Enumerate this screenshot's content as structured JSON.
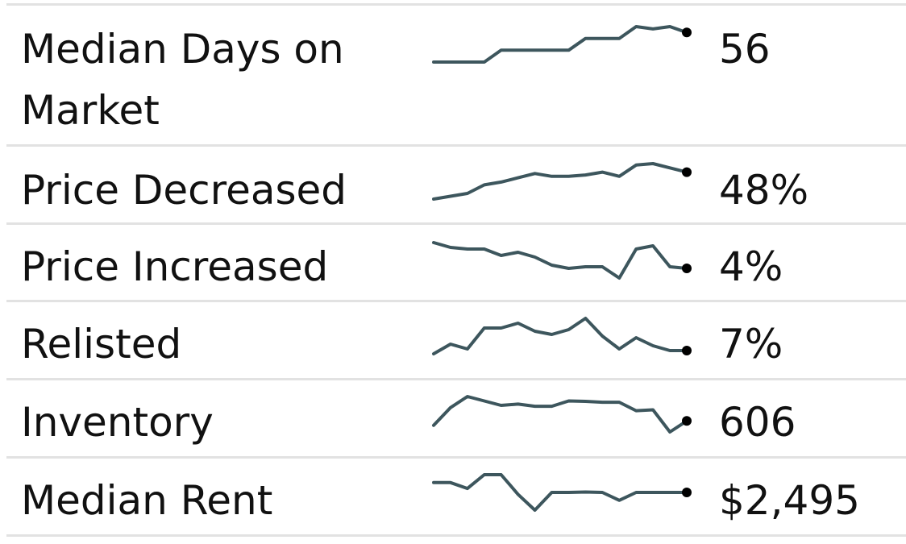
{
  "colors": {
    "line": "#3d565d",
    "end_dot": "#000000",
    "divider": "#e2e2e2"
  },
  "rows": [
    {
      "label_line1": "Median Days on",
      "label_line2": "Market",
      "value": "56"
    },
    {
      "label_line1": "Price Decreased",
      "label_line2": "",
      "value": "48%"
    },
    {
      "label_line1": "Price Increased",
      "label_line2": "",
      "value": "4%"
    },
    {
      "label_line1": "Relisted",
      "label_line2": "",
      "value": "7%"
    },
    {
      "label_line1": "Inventory",
      "label_line2": "",
      "value": "606"
    },
    {
      "label_line1": "Median Rent",
      "label_line2": "",
      "value": "$2,495"
    }
  ],
  "chart_data": {
    "type": "line",
    "series": [
      {
        "values": [
          0,
          0,
          0,
          0,
          1,
          1,
          1,
          1,
          1,
          2,
          2,
          2,
          3,
          2.8,
          3,
          2.5
        ]
      },
      {
        "values": [
          0,
          1,
          2,
          5,
          6,
          7.5,
          9,
          8,
          8,
          8.5,
          9.5,
          8,
          12,
          12.5,
          11,
          9.5
        ]
      },
      {
        "values": [
          11,
          9.5,
          9,
          9,
          7,
          8,
          6.5,
          4,
          3,
          3.5,
          3.5,
          0,
          9,
          10,
          3.5,
          3
        ]
      },
      {
        "values": [
          0,
          3,
          1.5,
          8,
          8,
          9.5,
          7,
          6,
          7.5,
          11,
          5.5,
          1.5,
          5,
          2.5,
          1,
          1
        ]
      },
      {
        "values": [
          2,
          6,
          8.5,
          7.5,
          6.5,
          6.8,
          6.3,
          6.3,
          7.5,
          7.4,
          7.2,
          7.2,
          5.3,
          5.5,
          0.5,
          3
        ]
      },
      {
        "values": [
          7,
          7,
          5.5,
          9,
          9,
          4,
          0,
          4.5,
          4.5,
          4.6,
          4.5,
          2.5,
          4.5,
          4.5,
          4.5,
          4.5
        ]
      }
    ]
  }
}
